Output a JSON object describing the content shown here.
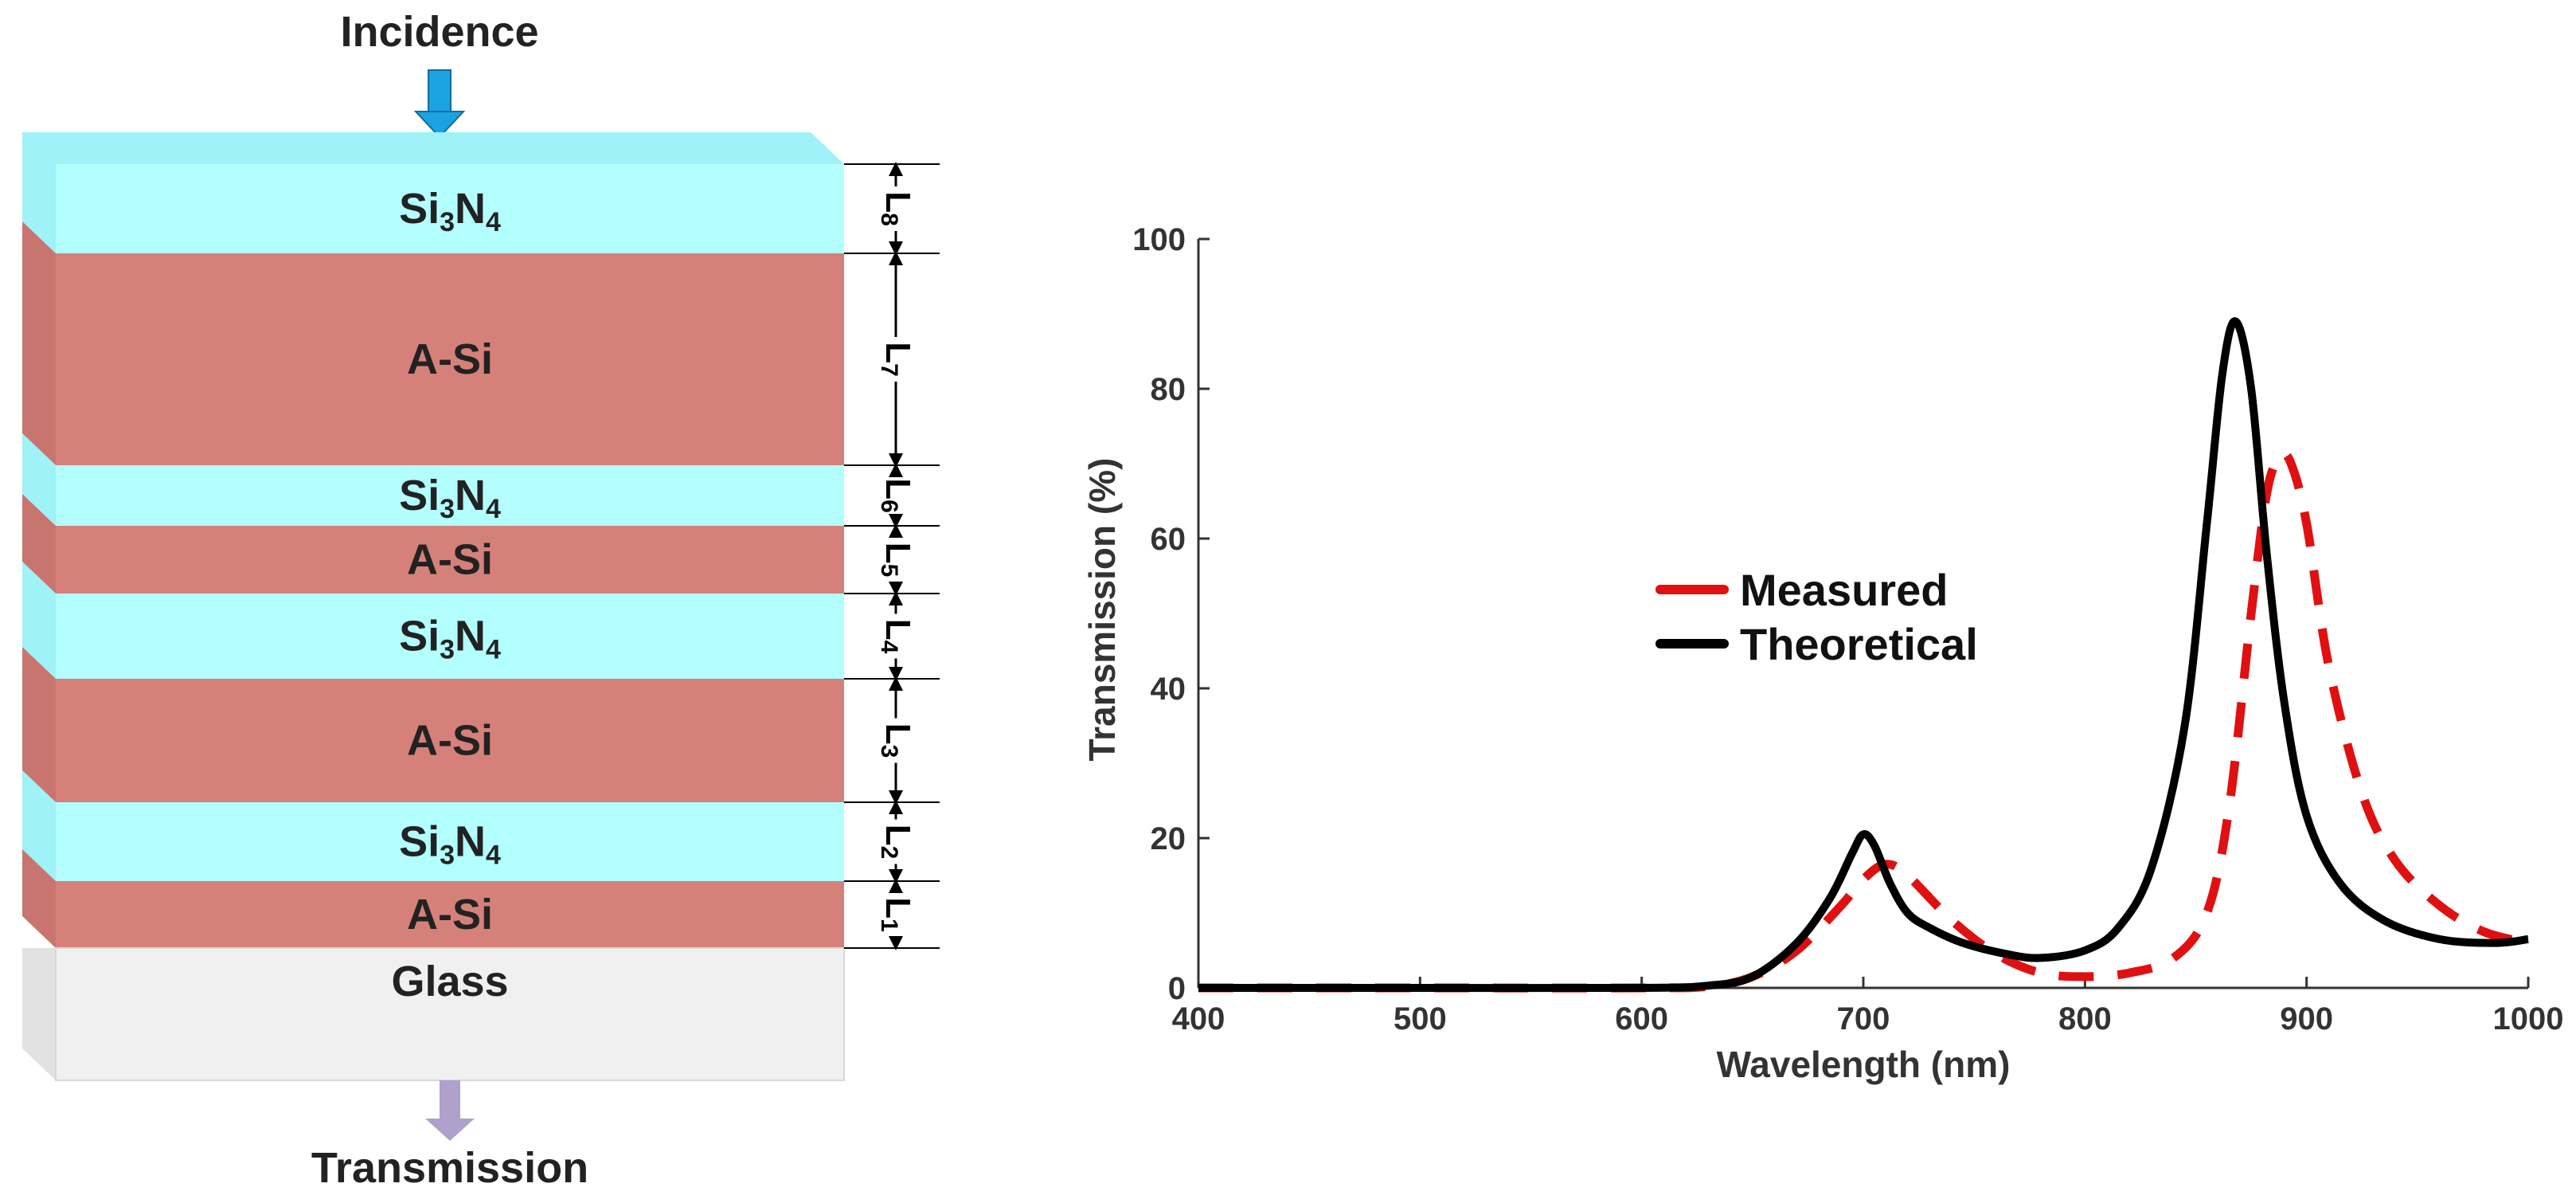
{
  "diagram": {
    "incidence_label": "Incidence",
    "transmission_label": "Transmission",
    "substrate_label": "Glass",
    "layers": [
      {
        "material": "Si",
        "sub": "3",
        "material_tail": "N",
        "sub2": "4",
        "kind": "nitride",
        "dimension": "L",
        "dim_sub": "8"
      },
      {
        "material": "A-Si",
        "kind": "asi",
        "dimension": "L",
        "dim_sub": "7"
      },
      {
        "material": "Si",
        "sub": "3",
        "material_tail": "N",
        "sub2": "4",
        "kind": "nitride",
        "dimension": "L",
        "dim_sub": "6"
      },
      {
        "material": "A-Si",
        "kind": "asi",
        "dimension": "L",
        "dim_sub": "5"
      },
      {
        "material": "Si",
        "sub": "3",
        "material_tail": "N",
        "sub2": "4",
        "kind": "nitride",
        "dimension": "L",
        "dim_sub": "4"
      },
      {
        "material": "A-Si",
        "kind": "asi",
        "dimension": "L",
        "dim_sub": "3"
      },
      {
        "material": "Si",
        "sub": "3",
        "material_tail": "N",
        "sub2": "4",
        "kind": "nitride",
        "dimension": "L",
        "dim_sub": "2"
      },
      {
        "material": "A-Si",
        "kind": "asi",
        "dimension": "L",
        "dim_sub": "1"
      }
    ],
    "colors": {
      "nitride_front": "#b3ffff",
      "nitride_side": "#9ef2f8",
      "asi_front": "#d5817a",
      "asi_side": "#c9756f",
      "glass_front": "#f0f0f0",
      "glass_side": "#e2e2e2",
      "incidence_arrow": "#1aa3e0",
      "transmission_arrow": "#b0a0cc"
    }
  },
  "chart_data": {
    "type": "line",
    "title": "",
    "xlabel": "Wavelength (nm)",
    "ylabel": "Transmission (%)",
    "xlim": [
      400,
      1000
    ],
    "ylim": [
      0,
      100
    ],
    "xticks": [
      400,
      500,
      600,
      700,
      800,
      900,
      1000
    ],
    "yticks": [
      0,
      20,
      40,
      60,
      80,
      100
    ],
    "legend_position": "center-left",
    "series": [
      {
        "name": "Measured",
        "color": "#e01010",
        "style": "dashed",
        "x": [
          400,
          500,
          600,
          630,
          650,
          670,
          690,
          700,
          710,
          720,
          740,
          760,
          780,
          800,
          820,
          840,
          855,
          865,
          875,
          882,
          888,
          893,
          900,
          910,
          925,
          940,
          960,
          980,
          1000
        ],
        "y": [
          0,
          0,
          0,
          0.2,
          1.5,
          5,
          11,
          14.5,
          16.5,
          15,
          9,
          4.5,
          2,
          1.5,
          2,
          4,
          10,
          24,
          50,
          66,
          71,
          70,
          62,
          43,
          26,
          17,
          11,
          7.5,
          6
        ]
      },
      {
        "name": "Theoretical",
        "color": "#000000",
        "style": "solid",
        "x": [
          400,
          500,
          600,
          630,
          650,
          670,
          685,
          695,
          700,
          705,
          712,
          720,
          730,
          745,
          765,
          780,
          800,
          815,
          830,
          845,
          855,
          862,
          868,
          875,
          882,
          890,
          900,
          915,
          935,
          960,
          985,
          1000
        ],
        "y": [
          0,
          0,
          0,
          0.3,
          1.5,
          6,
          12,
          18,
          20.5,
          19,
          14,
          10,
          8,
          6,
          4.5,
          4,
          5,
          8,
          16,
          35,
          62,
          82,
          89,
          80,
          58,
          38,
          23,
          14,
          9,
          6.5,
          6,
          6.5
        ]
      }
    ]
  }
}
